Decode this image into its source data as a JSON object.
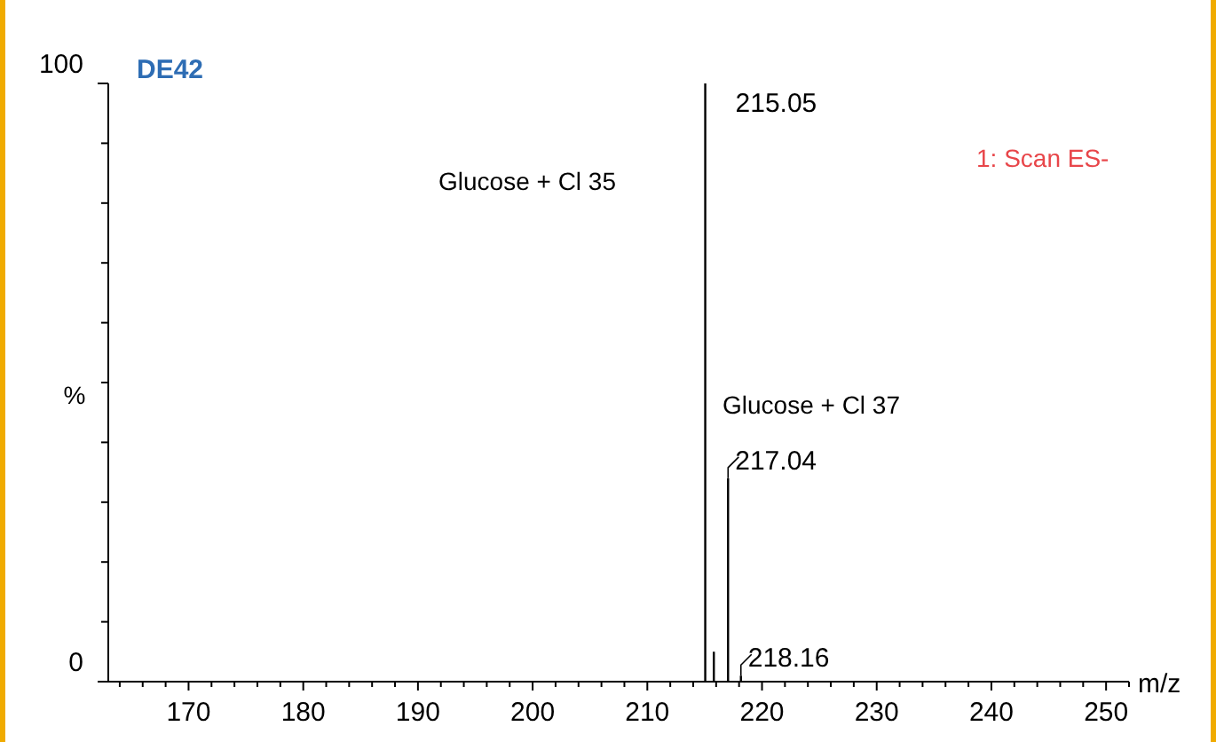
{
  "chart_data": {
    "type": "bar",
    "title": "DE42",
    "xlabel": "m/z",
    "ylabel": "%",
    "x": [
      215.05,
      215.8,
      217.04,
      218.16
    ],
    "values": [
      100,
      5,
      34,
      1
    ],
    "color": "#000000",
    "xlim": [
      163,
      252
    ],
    "xticks": [
      {
        "value": 164,
        "label": null
      },
      {
        "value": 166,
        "label": null
      },
      {
        "value": 168,
        "label": null
      },
      170,
      {
        "value": 172,
        "label": null
      },
      {
        "value": 174,
        "label": null
      },
      {
        "value": 176,
        "label": null
      },
      {
        "value": 178,
        "label": null
      },
      180,
      {
        "value": 182,
        "label": null
      },
      {
        "value": 184,
        "label": null
      },
      {
        "value": 186,
        "label": null
      },
      {
        "value": 188,
        "label": null
      },
      190,
      {
        "value": 192,
        "label": null
      },
      {
        "value": 194,
        "label": null
      },
      {
        "value": 196,
        "label": null
      },
      {
        "value": 198,
        "label": null
      },
      200,
      {
        "value": 202,
        "label": null
      },
      {
        "value": 204,
        "label": null
      },
      {
        "value": 206,
        "label": null
      },
      {
        "value": 208,
        "label": null
      },
      210,
      {
        "value": 212,
        "label": null
      },
      {
        "value": 214,
        "label": null
      },
      {
        "value": 216,
        "label": null
      },
      {
        "value": 218,
        "label": null
      },
      220,
      {
        "value": 222,
        "label": null
      },
      {
        "value": 224,
        "label": null
      },
      {
        "value": 226,
        "label": null
      },
      {
        "value": 228,
        "label": null
      },
      230,
      {
        "value": 232,
        "label": null
      },
      {
        "value": 234,
        "label": null
      },
      {
        "value": 236,
        "label": null
      },
      {
        "value": 238,
        "label": null
      },
      240,
      {
        "value": 242,
        "label": null
      },
      {
        "value": 244,
        "label": null
      },
      {
        "value": 246,
        "label": null
      },
      {
        "value": 248,
        "label": null
      },
      250,
      {
        "value": 252,
        "label": null
      }
    ],
    "ylim": [
      0,
      100
    ],
    "yticks": [
      0,
      {
        "value": 10,
        "label": null
      },
      {
        "value": 20,
        "label": null
      },
      {
        "value": 30,
        "label": null
      },
      {
        "value": 40,
        "label": null
      },
      {
        "value": 50,
        "label": null
      },
      {
        "value": 60,
        "label": null
      },
      {
        "value": 70,
        "label": null
      },
      {
        "value": 80,
        "label": null
      },
      {
        "value": 90,
        "label": null
      },
      100
    ],
    "annotations": [
      {
        "text": "215.05",
        "x": 215.05,
        "y": 100
      },
      {
        "text": "217.04",
        "x": 217.04,
        "y": 34
      },
      {
        "text": "218.16",
        "x": 218.16,
        "y": 1
      },
      "Glucose + Cl 35",
      "Glucose + Cl 37",
      "1: Scan ES-"
    ],
    "grid": false
  }
}
